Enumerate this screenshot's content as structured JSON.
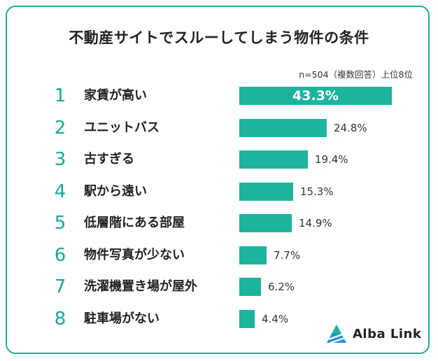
{
  "chart_data": {
    "type": "bar",
    "orientation": "horizontal",
    "title": "不動産サイトでスルーしてしまう物件の条件",
    "note": "n=504（複数回答）上位8位",
    "ranks": [
      "1",
      "2",
      "3",
      "4",
      "5",
      "6",
      "7",
      "8"
    ],
    "categories": [
      "家賃が高い",
      "ユニットバス",
      "古すぎる",
      "駅から遠い",
      "低層階にある部屋",
      "物件写真が少ない",
      "洗濯機置き場が屋外",
      "駐車場がない"
    ],
    "values": [
      43.3,
      24.8,
      19.4,
      15.3,
      14.9,
      7.7,
      6.2,
      4.4
    ],
    "value_labels": [
      "43.3%",
      "24.8%",
      "19.4%",
      "15.3%",
      "14.9%",
      "7.7%",
      "6.2%",
      "4.4%"
    ],
    "xlim": [
      0,
      43.3
    ],
    "color": "#1db49e",
    "rank_color": "#19a893",
    "grid": false
  },
  "brand": {
    "name": "Alba Link",
    "logo_icon": "triangle-logo-icon"
  }
}
